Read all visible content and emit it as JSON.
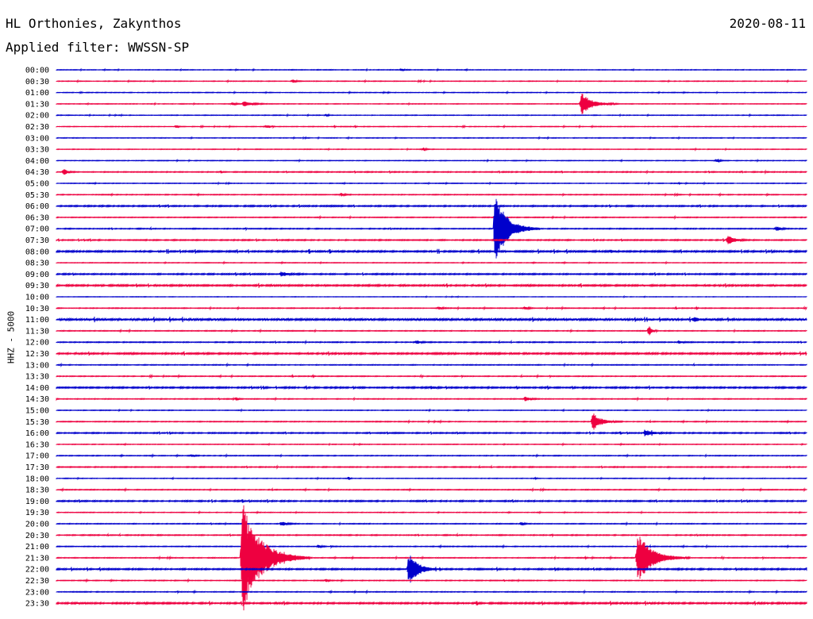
{
  "header": {
    "station": "HL Orthonies, Zakynthos",
    "date": "2020-08-11",
    "filter": "Applied filter: WWSSN-SP"
  },
  "axis": {
    "ylabel": "HHZ - 5000"
  },
  "colors": {
    "blue": "#0000cc",
    "red": "#ee0040",
    "text": "#000000",
    "background": "#ffffff"
  },
  "chart_data": {
    "type": "line",
    "title": "HL Orthonies, Zakynthos",
    "subtitle": "Applied filter: WWSSN-SP",
    "ylabel": "HHZ - 5000",
    "xlabel": "",
    "grid": false,
    "legend": "none",
    "row_labels": [
      "00:00",
      "00:30",
      "01:00",
      "01:30",
      "02:00",
      "02:30",
      "03:00",
      "03:30",
      "04:00",
      "04:30",
      "05:00",
      "05:30",
      "06:00",
      "06:30",
      "07:00",
      "07:30",
      "08:00",
      "08:30",
      "09:00",
      "09:30",
      "10:00",
      "10:30",
      "11:00",
      "11:30",
      "12:00",
      "12:30",
      "13:00",
      "13:30",
      "14:00",
      "14:30",
      "15:00",
      "15:30",
      "16:00",
      "16:30",
      "17:00",
      "17:30",
      "18:00",
      "18:30",
      "19:00",
      "19:30",
      "20:00",
      "20:30",
      "21:00",
      "21:30",
      "22:00",
      "22:30",
      "23:00",
      "23:30"
    ],
    "row_colors": [
      "blue",
      "red"
    ],
    "row_noise": [
      0.4,
      0.4,
      0.4,
      0.4,
      0.4,
      0.4,
      0.4,
      0.4,
      0.4,
      0.6,
      0.4,
      0.5,
      0.8,
      0.5,
      0.6,
      0.7,
      1.0,
      0.4,
      0.8,
      1.0,
      0.3,
      0.5,
      1.2,
      0.5,
      0.6,
      1.0,
      0.5,
      0.5,
      0.9,
      0.5,
      0.4,
      0.5,
      0.7,
      0.4,
      0.5,
      0.6,
      0.4,
      0.5,
      0.8,
      0.4,
      0.5,
      0.6,
      0.5,
      0.5,
      0.9,
      0.5,
      0.5,
      1.0
    ],
    "events": [
      {
        "row": 0,
        "pos": 0.46,
        "amp": 2,
        "dur": 0.012
      },
      {
        "row": 1,
        "pos": 0.315,
        "amp": 2,
        "dur": 0.015
      },
      {
        "row": 3,
        "pos": 0.235,
        "amp": 1.5,
        "dur": 0.02
      },
      {
        "row": 3,
        "pos": 0.25,
        "amp": 3,
        "dur": 0.04
      },
      {
        "row": 3,
        "pos": 0.7,
        "amp": 14,
        "dur": 0.05
      },
      {
        "row": 4,
        "pos": 0.36,
        "amp": 1.5,
        "dur": 0.01
      },
      {
        "row": 5,
        "pos": 0.16,
        "amp": 2,
        "dur": 0.01
      },
      {
        "row": 5,
        "pos": 0.28,
        "amp": 1.5,
        "dur": 0.02
      },
      {
        "row": 7,
        "pos": 0.49,
        "amp": 2,
        "dur": 0.008
      },
      {
        "row": 8,
        "pos": 0.88,
        "amp": 2,
        "dur": 0.02
      },
      {
        "row": 9,
        "pos": 0.01,
        "amp": 5,
        "dur": 0.015
      },
      {
        "row": 11,
        "pos": 0.38,
        "amp": 1.5,
        "dur": 0.02
      },
      {
        "row": 14,
        "pos": 0.585,
        "amp": 45,
        "dur": 0.06
      },
      {
        "row": 14,
        "pos": 0.96,
        "amp": 3,
        "dur": 0.02
      },
      {
        "row": 15,
        "pos": 0.895,
        "amp": 6,
        "dur": 0.03
      },
      {
        "row": 16,
        "pos": 0.74,
        "amp": 2,
        "dur": 0.015
      },
      {
        "row": 18,
        "pos": 0.3,
        "amp": 3,
        "dur": 0.03
      },
      {
        "row": 21,
        "pos": 0.51,
        "amp": 2,
        "dur": 0.015
      },
      {
        "row": 21,
        "pos": 0.625,
        "amp": 2,
        "dur": 0.015
      },
      {
        "row": 22,
        "pos": 0.85,
        "amp": 3,
        "dur": 0.02
      },
      {
        "row": 23,
        "pos": 0.79,
        "amp": 7,
        "dur": 0.012
      },
      {
        "row": 24,
        "pos": 0.48,
        "amp": 2,
        "dur": 0.02
      },
      {
        "row": 24,
        "pos": 0.83,
        "amp": 2,
        "dur": 0.02
      },
      {
        "row": 28,
        "pos": 0.5,
        "amp": 2,
        "dur": 0.015
      },
      {
        "row": 29,
        "pos": 0.625,
        "amp": 3,
        "dur": 0.02
      },
      {
        "row": 29,
        "pos": 0.24,
        "amp": 2,
        "dur": 0.008
      },
      {
        "row": 31,
        "pos": 0.715,
        "amp": 12,
        "dur": 0.04
      },
      {
        "row": 32,
        "pos": 0.785,
        "amp": 4,
        "dur": 0.035
      },
      {
        "row": 34,
        "pos": 0.18,
        "amp": 1.5,
        "dur": 0.02
      },
      {
        "row": 36,
        "pos": 0.39,
        "amp": 2,
        "dur": 0.006
      },
      {
        "row": 40,
        "pos": 0.3,
        "amp": 3,
        "dur": 0.025
      },
      {
        "row": 40,
        "pos": 0.62,
        "amp": 2,
        "dur": 0.012
      },
      {
        "row": 43,
        "pos": 0.248,
        "amp": 72,
        "dur": 0.09
      },
      {
        "row": 43,
        "pos": 0.775,
        "amp": 32,
        "dur": 0.07
      },
      {
        "row": 42,
        "pos": 0.35,
        "amp": 2,
        "dur": 0.01
      },
      {
        "row": 44,
        "pos": 0.47,
        "amp": 20,
        "dur": 0.045
      },
      {
        "row": 45,
        "pos": 0.36,
        "amp": 2,
        "dur": 0.01
      }
    ]
  }
}
